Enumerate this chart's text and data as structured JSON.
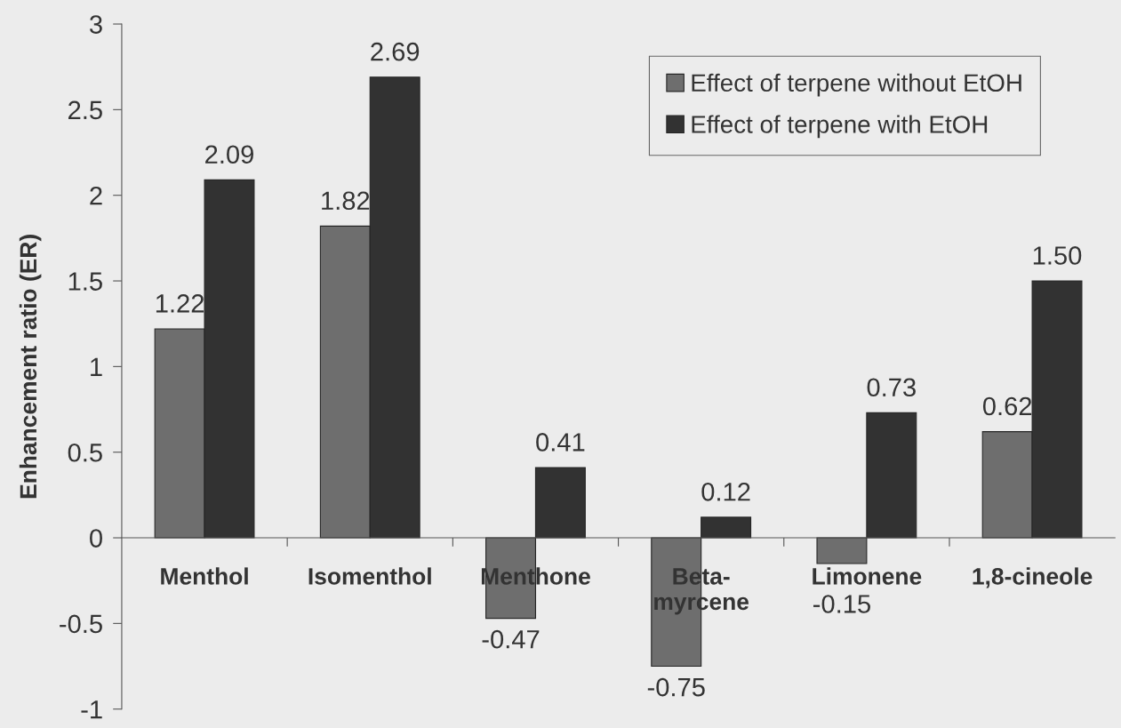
{
  "chart_data": {
    "type": "bar",
    "ylabel": "Enhancement ratio (ER)",
    "categories": [
      "Menthol",
      "Isomenthol",
      "Menthone",
      "Beta-\nmyrcene",
      "Limonene",
      "1,8-cineole"
    ],
    "series": [
      {
        "name": "Effect of terpene without EtOH",
        "color": "#6e6e6e",
        "values": [
          1.22,
          1.82,
          -0.47,
          -0.75,
          -0.15,
          0.62
        ],
        "value_labels": [
          "1.22",
          "1.82",
          "-0.47",
          "-0.75",
          "-0.15",
          "0.62"
        ]
      },
      {
        "name": "Effect of terpene with EtOH",
        "color": "#323232",
        "values": [
          2.09,
          2.69,
          0.41,
          0.12,
          0.73,
          1.5
        ],
        "value_labels": [
          "2.09",
          "2.69",
          "0.41",
          "0.12",
          "0.73",
          "1.50"
        ]
      }
    ],
    "ylim": [
      -1,
      3
    ],
    "yticks": [
      -1,
      -0.5,
      0,
      0.5,
      1,
      1.5,
      2,
      2.5,
      3
    ],
    "legend": "top right"
  }
}
